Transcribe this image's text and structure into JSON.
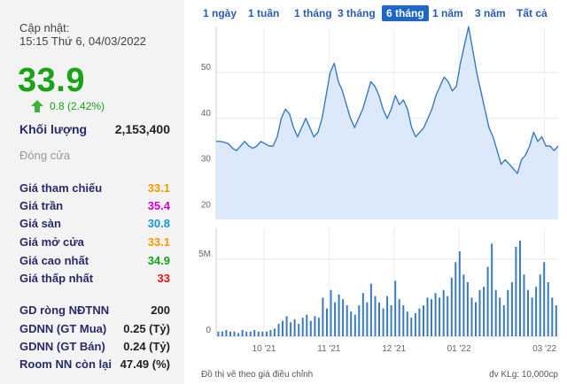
{
  "info": {
    "update_label": "Cập nhật:",
    "update_time": "15:15 Thứ 6, 04/03/2022",
    "price": "33.9",
    "change": "0.8 (2.42%)",
    "volume_label": "Khối lượng",
    "volume_value": "2,153,400",
    "session_status": "Đóng cửa"
  },
  "stats": [
    {
      "label": "Giá tham chiếu",
      "value": "33.1",
      "color": "#f29a00"
    },
    {
      "label": "Giá trần",
      "value": "35.4",
      "color": "#d000d0"
    },
    {
      "label": "Giá sàn",
      "value": "30.8",
      "color": "#1a96d8"
    },
    {
      "label": "Giá mở cửa",
      "value": "33.1",
      "color": "#f29a00"
    },
    {
      "label": "Giá cao nhất",
      "value": "34.9",
      "color": "#19a319"
    },
    {
      "label": "Giá thấp nhất",
      "value": "33",
      "color": "#e01818"
    }
  ],
  "foreign": [
    {
      "label": "GD ròng NĐTNN",
      "value": "200"
    },
    {
      "label": "GDNN (GT Mua)",
      "value": "0.25 (Tỷ)"
    },
    {
      "label": "GDNN (GT Bán)",
      "value": "0.24 (Tỷ)"
    },
    {
      "label": "Room NN còn lại",
      "value": "47.49 (%)"
    }
  ],
  "tabs": [
    {
      "label": "1 ngày",
      "active": false
    },
    {
      "label": "1 tuần",
      "active": false
    },
    {
      "label": "1 tháng",
      "active": false
    },
    {
      "label": "3 tháng",
      "active": false
    },
    {
      "label": "6 tháng",
      "active": true
    },
    {
      "label": "1 năm",
      "active": false
    },
    {
      "label": "3 năm",
      "active": false
    },
    {
      "label": "Tất cả",
      "active": false
    }
  ],
  "footer": {
    "note": "Đồ thị vẽ theo giá điều chỉnh",
    "volume_unit": "đv KLg: 10,000cp"
  },
  "colors": {
    "up": "#19a319",
    "line": "#3a7bbf",
    "area": "#dbe9fb",
    "volume_bar": "#3a7bbf",
    "active_tab": "#1f67c6"
  },
  "chart_data": {
    "type": "area",
    "title": "",
    "xlabel": "",
    "ylabel": "",
    "ylim": [
      18,
      60
    ],
    "yticks": [
      20,
      30,
      40,
      50
    ],
    "x_tick_labels": [
      "10 '21",
      "11 '21",
      "12 '21",
      "01 '22",
      "03 '22"
    ],
    "x_tick_positions": [
      0.14,
      0.33,
      0.52,
      0.71,
      0.96
    ],
    "price_series": [
      35,
      35,
      34.8,
      34.5,
      33.5,
      33,
      34,
      35,
      34,
      33.5,
      34,
      35,
      34.5,
      34,
      34,
      36,
      40,
      42,
      41,
      38,
      36,
      38,
      40,
      38,
      36,
      37,
      40,
      45,
      50,
      52,
      48,
      46,
      43,
      40,
      38,
      40,
      42,
      45,
      48,
      47,
      45,
      42,
      40,
      42,
      45,
      43,
      44,
      42,
      38,
      36,
      37,
      38,
      40,
      42,
      45,
      47,
      49,
      48,
      46,
      47,
      52,
      56,
      60,
      55,
      50,
      46,
      42,
      38,
      36,
      33,
      30,
      31,
      30,
      29,
      28,
      31,
      32,
      34,
      37,
      35,
      36,
      34,
      34,
      33,
      34
    ],
    "volume_ylim": [
      0,
      7
    ],
    "volume_ytick_label": "5M",
    "volume_ytick_value": 5,
    "volume_zero_label": "0",
    "volume_series": [
      0.3,
      0.3,
      0.4,
      0.3,
      0.3,
      0.2,
      0.4,
      0.3,
      0.3,
      0.4,
      0.3,
      0.3,
      0.3,
      0.4,
      0.5,
      0.8,
      1.0,
      1.3,
      0.9,
      1.1,
      0.8,
      1.2,
      1.4,
      1.0,
      1.3,
      1.2,
      2.5,
      1.8,
      3.0,
      2.2,
      2.7,
      2.4,
      2.0,
      1.6,
      1.4,
      2.0,
      2.8,
      2.2,
      3.4,
      2.6,
      2.2,
      1.8,
      2.6,
      2.0,
      3.6,
      2.4,
      2.0,
      1.6,
      1.2,
      1.5,
      1.8,
      2.0,
      2.5,
      2.4,
      2.8,
      2.5,
      3.0,
      2.6,
      3.8,
      4.8,
      5.5,
      4.0,
      3.5,
      2.5,
      2.2,
      3.0,
      3.2,
      4.5,
      6.0,
      3.0,
      2.5,
      2.0,
      3.0,
      3.5,
      5.8,
      6.2,
      4.0,
      3.0,
      2.5,
      3.2,
      4.0,
      4.8,
      3.5,
      2.5,
      2.0
    ]
  }
}
